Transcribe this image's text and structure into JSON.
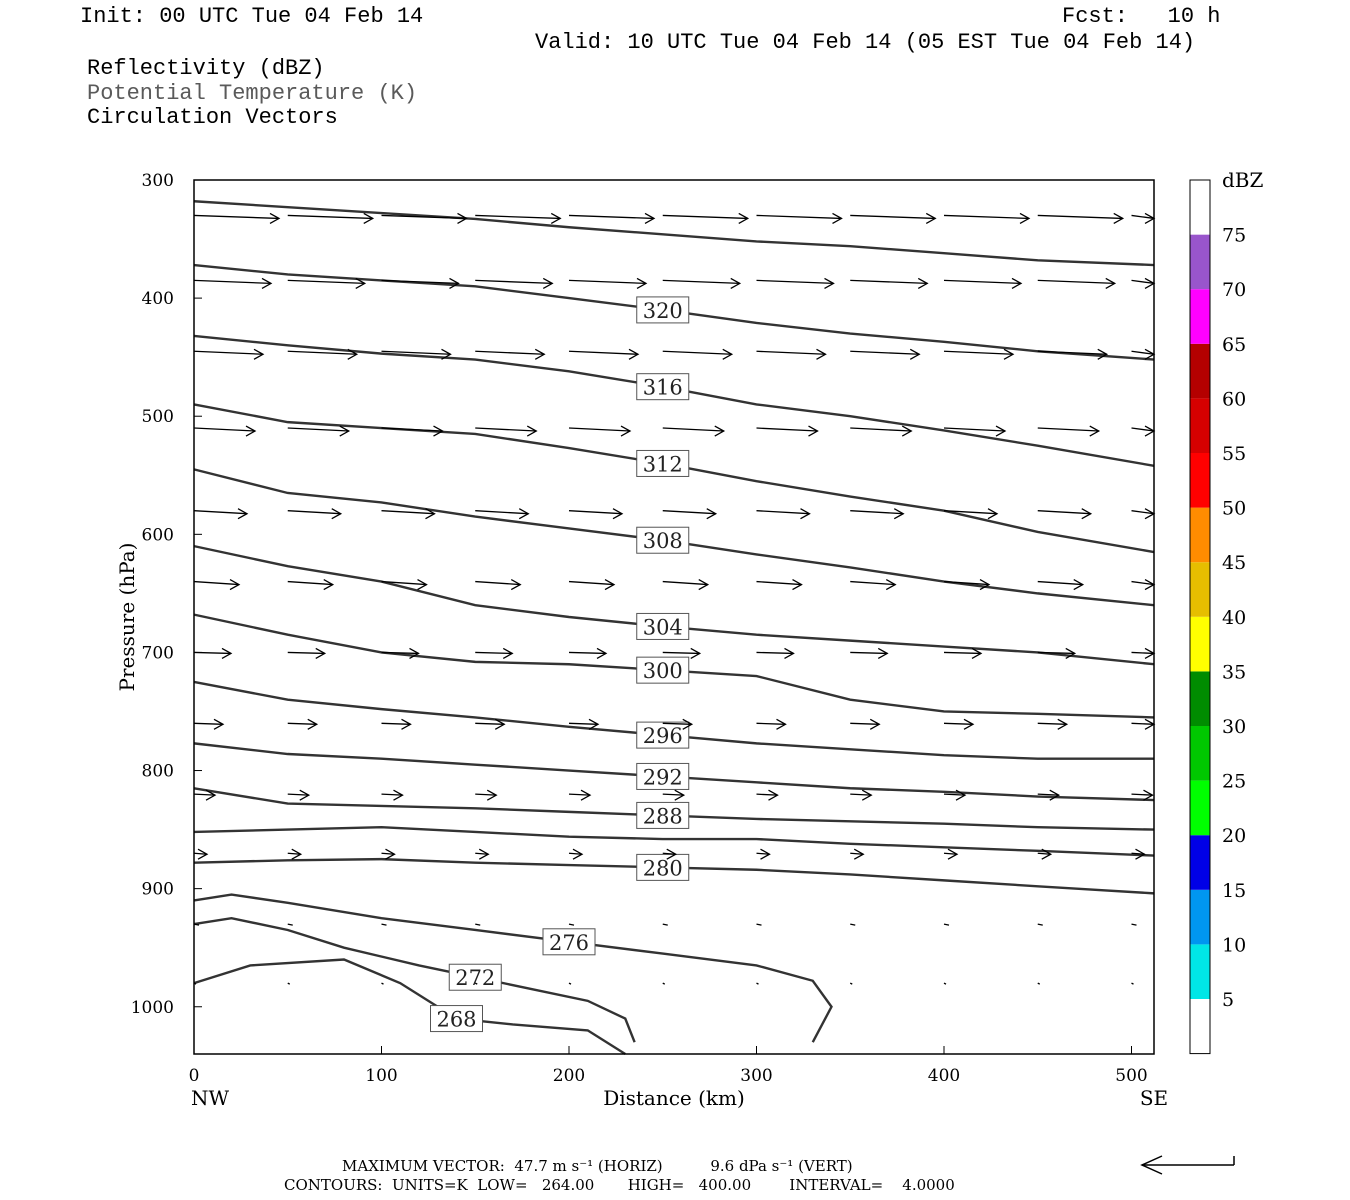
{
  "header": {
    "init": "Init: 00 UTC Tue 04 Feb 14",
    "fcst": "Fcst:   10 h",
    "valid": "Valid: 10 UTC Tue 04 Feb 14 (05 EST Tue 04 Feb 14)"
  },
  "fields": [
    "Reflectivity (dBZ)",
    "Potential Temperature (K)",
    "Circulation Vectors"
  ],
  "footer": {
    "max_vector": "MAXIMUM VECTOR:  47.7 m s⁻¹ (HORIZ)          9.6 dPa s⁻¹ (VERT)",
    "contours": "CONTOURS:  UNITS=K  LOW=   264.00       HIGH=   400.00        INTERVAL=    4.0000"
  },
  "colorbar": {
    "unit": "dBZ",
    "levels": [
      "5",
      "10",
      "15",
      "20",
      "25",
      "30",
      "35",
      "40",
      "45",
      "50",
      "55",
      "60",
      "65",
      "70",
      "75"
    ],
    "colors": [
      "#ffffff",
      "#00e6e6",
      "#0096f0",
      "#0000e6",
      "#00ff00",
      "#00c800",
      "#008c00",
      "#ffff00",
      "#e6be00",
      "#ff8c00",
      "#ff0000",
      "#d60000",
      "#b40000",
      "#ff00ff",
      "#9955cc",
      "#ffffff"
    ]
  },
  "chart_data": {
    "type": "contour",
    "xlabel": "Distance (km)",
    "ylabel": "Pressure (hPa)",
    "xlim": [
      0,
      512
    ],
    "ylim": [
      300,
      1040
    ],
    "x_ticks": [
      0,
      100,
      200,
      300,
      400,
      500
    ],
    "y_ticks": [
      300,
      400,
      500,
      600,
      700,
      800,
      900,
      1000
    ],
    "x_end_labels": {
      "left": "NW",
      "right": "SE"
    },
    "contour_units": "K",
    "contours": [
      {
        "label": "",
        "points": [
          [
            0,
            318
          ],
          [
            50,
            323
          ],
          [
            100,
            328
          ],
          [
            150,
            333
          ],
          [
            200,
            340
          ],
          [
            250,
            346
          ],
          [
            300,
            352
          ],
          [
            350,
            356
          ],
          [
            400,
            362
          ],
          [
            450,
            368
          ],
          [
            512,
            372
          ]
        ]
      },
      {
        "label": "320",
        "points": [
          [
            0,
            372
          ],
          [
            50,
            380
          ],
          [
            100,
            385
          ],
          [
            150,
            390
          ],
          [
            200,
            400
          ],
          [
            250,
            410
          ],
          [
            300,
            421
          ],
          [
            350,
            430
          ],
          [
            400,
            437
          ],
          [
            450,
            445
          ],
          [
            512,
            452
          ]
        ]
      },
      {
        "label": "316",
        "points": [
          [
            0,
            432
          ],
          [
            50,
            440
          ],
          [
            100,
            447
          ],
          [
            150,
            452
          ],
          [
            200,
            462
          ],
          [
            250,
            475
          ],
          [
            300,
            490
          ],
          [
            350,
            500
          ],
          [
            400,
            512
          ],
          [
            450,
            525
          ],
          [
            512,
            542
          ]
        ]
      },
      {
        "label": "312",
        "points": [
          [
            0,
            490
          ],
          [
            50,
            505
          ],
          [
            100,
            510
          ],
          [
            150,
            515
          ],
          [
            200,
            527
          ],
          [
            250,
            540
          ],
          [
            300,
            555
          ],
          [
            350,
            568
          ],
          [
            400,
            580
          ],
          [
            450,
            598
          ],
          [
            512,
            615
          ]
        ]
      },
      {
        "label": "308",
        "points": [
          [
            0,
            545
          ],
          [
            50,
            565
          ],
          [
            100,
            573
          ],
          [
            150,
            585
          ],
          [
            200,
            595
          ],
          [
            250,
            605
          ],
          [
            300,
            617
          ],
          [
            350,
            628
          ],
          [
            400,
            640
          ],
          [
            450,
            650
          ],
          [
            512,
            660
          ]
        ]
      },
      {
        "label": "304",
        "points": [
          [
            0,
            610
          ],
          [
            50,
            627
          ],
          [
            100,
            640
          ],
          [
            150,
            660
          ],
          [
            200,
            670
          ],
          [
            250,
            678
          ],
          [
            300,
            685
          ],
          [
            350,
            690
          ],
          [
            400,
            695
          ],
          [
            450,
            700
          ],
          [
            512,
            710
          ]
        ]
      },
      {
        "label": "300",
        "points": [
          [
            0,
            668
          ],
          [
            50,
            685
          ],
          [
            100,
            700
          ],
          [
            150,
            708
          ],
          [
            200,
            710
          ],
          [
            250,
            715
          ],
          [
            300,
            720
          ],
          [
            350,
            740
          ],
          [
            400,
            750
          ],
          [
            450,
            752
          ],
          [
            512,
            755
          ]
        ]
      },
      {
        "label": "296",
        "points": [
          [
            0,
            725
          ],
          [
            50,
            740
          ],
          [
            100,
            748
          ],
          [
            150,
            755
          ],
          [
            200,
            763
          ],
          [
            250,
            770
          ],
          [
            300,
            777
          ],
          [
            350,
            782
          ],
          [
            400,
            787
          ],
          [
            450,
            790
          ],
          [
            512,
            790
          ]
        ]
      },
      {
        "label": "292",
        "points": [
          [
            0,
            777
          ],
          [
            50,
            786
          ],
          [
            100,
            790
          ],
          [
            150,
            795
          ],
          [
            200,
            800
          ],
          [
            250,
            805
          ],
          [
            300,
            810
          ],
          [
            350,
            815
          ],
          [
            400,
            818
          ],
          [
            450,
            822
          ],
          [
            512,
            825
          ]
        ]
      },
      {
        "label": "288",
        "points": [
          [
            0,
            815
          ],
          [
            50,
            828
          ],
          [
            100,
            830
          ],
          [
            150,
            832
          ],
          [
            200,
            835
          ],
          [
            250,
            838
          ],
          [
            300,
            841
          ],
          [
            350,
            843
          ],
          [
            400,
            845
          ],
          [
            450,
            848
          ],
          [
            512,
            850
          ]
        ]
      },
      {
        "label": "",
        "points": [
          [
            0,
            852
          ],
          [
            50,
            850
          ],
          [
            100,
            848
          ],
          [
            150,
            852
          ],
          [
            200,
            856
          ],
          [
            250,
            858
          ],
          [
            300,
            858
          ],
          [
            350,
            862
          ],
          [
            400,
            865
          ],
          [
            450,
            868
          ],
          [
            512,
            872
          ]
        ]
      },
      {
        "label": "280",
        "points": [
          [
            0,
            878
          ],
          [
            50,
            876
          ],
          [
            100,
            875
          ],
          [
            150,
            878
          ],
          [
            200,
            880
          ],
          [
            250,
            882
          ],
          [
            300,
            884
          ],
          [
            350,
            888
          ],
          [
            400,
            893
          ],
          [
            450,
            898
          ],
          [
            512,
            904
          ]
        ]
      },
      {
        "label": "276",
        "points": [
          [
            0,
            910
          ],
          [
            20,
            905
          ],
          [
            50,
            912
          ],
          [
            100,
            925
          ],
          [
            150,
            935
          ],
          [
            200,
            945
          ],
          [
            250,
            955
          ],
          [
            300,
            965
          ],
          [
            330,
            978
          ],
          [
            340,
            1000
          ],
          [
            330,
            1030
          ]
        ]
      },
      {
        "label": "272",
        "points": [
          [
            0,
            930
          ],
          [
            20,
            925
          ],
          [
            50,
            935
          ],
          [
            80,
            950
          ],
          [
            120,
            965
          ],
          [
            150,
            975
          ],
          [
            180,
            985
          ],
          [
            210,
            995
          ],
          [
            230,
            1010
          ],
          [
            235,
            1030
          ]
        ]
      },
      {
        "label": "268",
        "points": [
          [
            0,
            980
          ],
          [
            30,
            965
          ],
          [
            80,
            960
          ],
          [
            110,
            980
          ],
          [
            140,
            1010
          ],
          [
            170,
            1015
          ],
          [
            210,
            1020
          ],
          [
            230,
            1040
          ]
        ]
      }
    ],
    "vector_rows_hPa": [
      330,
      385,
      445,
      510,
      580,
      640,
      700,
      760,
      820,
      870,
      930,
      980
    ]
  }
}
